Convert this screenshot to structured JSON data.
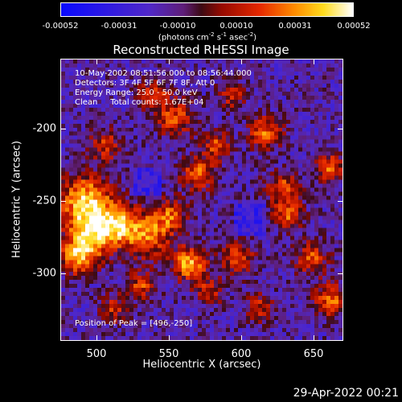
{
  "colorbar": {
    "tick_labels": [
      "-0.00052",
      "-0.00031",
      "-0.00010",
      "0.00010",
      "0.00031",
      "0.00052"
    ],
    "unit_prefix": "(photons cm",
    "unit_exp1": "-2",
    "unit_mid1": " s",
    "unit_exp2": "-1",
    "unit_mid2": " asec",
    "unit_exp3": "-2",
    "unit_suffix": ")",
    "range": [
      -0.00052,
      0.00052
    ]
  },
  "info": {
    "line1": "10-May-2002 08:51:56.000 to 08:56:44.000",
    "line2": "Detectors: 3F 4F 5F 6F 7F 8F, Att 0",
    "line3": "Energy Range: 25.0 - 50.0 keV",
    "line4": "Clean     Total counts: 1.67E+04",
    "peak": "Position of Peak = [496,-250]"
  },
  "timestamp": "29-Apr-2022 00:21",
  "chart_data": {
    "type": "heatmap",
    "title": "Reconstructed RHESSI Image",
    "xlabel": "Heliocentric X (arcsec)",
    "ylabel": "Heliocentric Y (arcsec)",
    "xlim": [
      476,
      668
    ],
    "ylim": [
      -347,
      -155
    ],
    "xticks": [
      500,
      550,
      600,
      650
    ],
    "yticks": [
      -200,
      -250,
      -300
    ],
    "colormap": "blue-purple-red-yellow-white",
    "value_range": [
      -0.00052,
      0.00052
    ],
    "peak_position": [
      496,
      -250
    ]
  }
}
